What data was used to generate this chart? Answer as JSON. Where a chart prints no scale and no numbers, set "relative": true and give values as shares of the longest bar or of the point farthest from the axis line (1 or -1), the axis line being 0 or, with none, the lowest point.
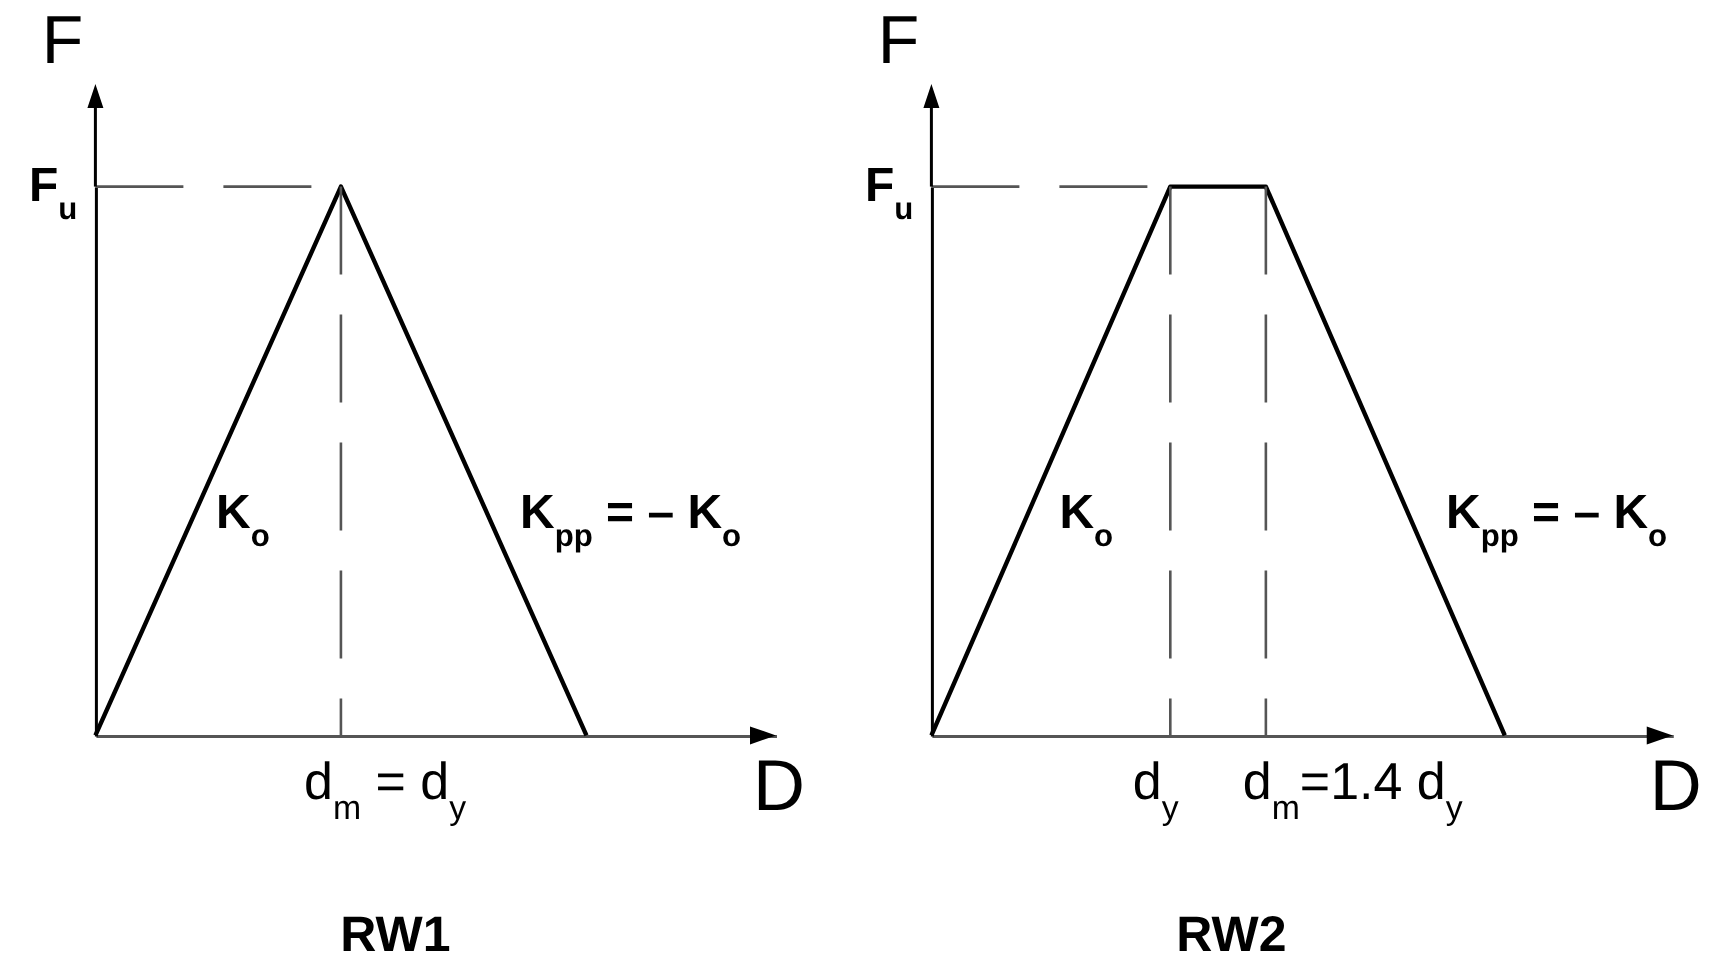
{
  "chart_data": [
    {
      "type": "line",
      "title": "RW1",
      "xlabel": "D",
      "ylabel": "F",
      "relative": true,
      "categories": [
        null,
        null,
        null
      ],
      "series": [
        {
          "color": "#000000",
          "values": [
            0,
            1,
            0
          ]
        },
        {
          "color": "#555555",
          "line_style": "dashed",
          "values": [
            1,
            1,
            null
          ]
        }
      ],
      "annotations": [
        "F$_{u}$",
        "K$_{o}$",
        "K$_{pp}$ = – K$_{o}$",
        "d$_{m}$ = d$_{y}$"
      ]
    },
    {
      "type": "line",
      "title": "RW2",
      "xlabel": "D",
      "ylabel": "F",
      "relative": true,
      "categories": [
        null,
        null,
        null,
        null,
        null,
        null,
        null,
        null,
        null,
        null,
        null,
        null,
        null
      ],
      "series": [
        {
          "color": "#000000",
          "values": [
            0,
            0.2,
            0.4,
            0.6,
            0.8,
            1,
            1,
            1,
            0.8,
            0.6,
            0.4,
            0.2,
            0
          ]
        },
        {
          "color": "#555555",
          "line_style": "dashed",
          "values": [
            1,
            1,
            1,
            1,
            1,
            1,
            null,
            null,
            null,
            null,
            null,
            null,
            null
          ]
        }
      ],
      "annotations": [
        "F$_{u}$",
        "K$_{o}$",
        "K$_{pp}$ = – K$_{o}$",
        "d$_{y}$",
        "d$_{m}$=1.4 d$_{y}$"
      ]
    }
  ]
}
